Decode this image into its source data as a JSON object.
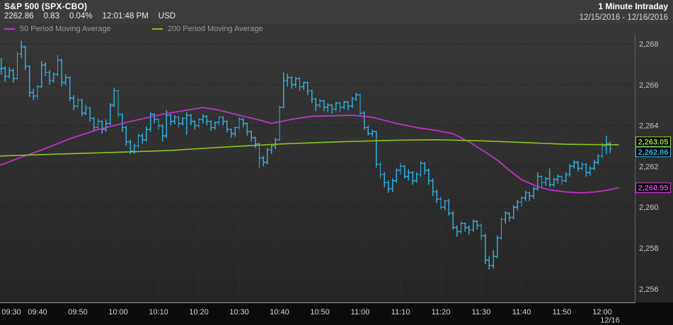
{
  "header": {
    "symbol_title": "S&P 500 (SPX-CBO)",
    "quote": {
      "last": "2262.86",
      "change": "0.83",
      "change_pct": "0.04%",
      "time": "12:01:48 PM",
      "currency": "USD"
    },
    "interval_label": "1 Minute Intraday",
    "date_range": "12/15/2016 - 12/16/2016"
  },
  "legend": {
    "ma50_label": "50 Period Moving Average",
    "ma200_label": "200 Period Moving Average"
  },
  "colors": {
    "header_bg": "#3c3c3c",
    "plot_bg_top": "#373737",
    "plot_bg_bottom": "#262626",
    "axis_strip_bg": "#0b0b0b",
    "price": "#2fadde",
    "ma50": "#c433cc",
    "ma200": "#8dc516",
    "callout_price": "#2fb4e8",
    "callout_ma50": "#e23ee2",
    "callout_ma200": "#9ddc1e",
    "axis_text": "#c6c6c6",
    "time_text": "#d4d4d4",
    "legend_text": "#9b9b9b",
    "grid_h": "#232323",
    "grid_v": "#3e3e3e",
    "axis_line": "#5f5f5f",
    "separator": "#999999"
  },
  "chart_data": {
    "type": "bar",
    "subtype": "ohlc-intraday",
    "title": "S&P 500 (SPX-CBO) 1 Minute Intraday",
    "bar_interval_minutes": 1,
    "session_start": "09:30",
    "session_end": "12:01",
    "y_axis": {
      "min": 2255.6,
      "max": 2268.6,
      "grid": true,
      "ticks": [
        {
          "label": "2,268",
          "value": 2268
        },
        {
          "label": "2,266",
          "value": 2266
        },
        {
          "label": "2,264",
          "value": 2264
        },
        {
          "label": "2,262",
          "value": 2262
        },
        {
          "label": "2,260",
          "value": 2260
        },
        {
          "label": "2,258",
          "value": 2258
        },
        {
          "label": "2,256",
          "value": 2256
        }
      ]
    },
    "x_axis": {
      "labels": [
        "09:30",
        "09:40",
        "09:50",
        "10:00",
        "10:10",
        "10:20",
        "10:30",
        "10:40",
        "10:50",
        "11:00",
        "11:10",
        "11:20",
        "11:30",
        "11:40",
        "11:50",
        "12:00"
      ],
      "date_label": "12/16"
    },
    "callouts": [
      {
        "label": "2,263.05",
        "value": 2263.05,
        "series": "ma200",
        "color": "#9ddc1e"
      },
      {
        "label": "2,262.86",
        "value": 2262.86,
        "series": "price",
        "color": "#2fb4e8"
      },
      {
        "label": "2,260.95",
        "value": 2260.95,
        "series": "ma50",
        "color": "#e23ee2"
      }
    ],
    "bars_hlc": [
      [
        2267.3,
        2266.5,
        2266.8
      ],
      [
        2266.9,
        2266.15,
        2266.4
      ],
      [
        2266.85,
        2266.3,
        2266.7
      ],
      [
        2266.8,
        2266.1,
        2266.3
      ],
      [
        2267.6,
        2266.25,
        2267.5
      ],
      [
        2268.15,
        2267.3,
        2267.85
      ],
      [
        2267.9,
        2266.7,
        2266.9
      ],
      [
        2266.95,
        2265.4,
        2265.6
      ],
      [
        2265.8,
        2265.25,
        2265.45
      ],
      [
        2266.0,
        2265.3,
        2265.9
      ],
      [
        2267.15,
        2265.85,
        2266.95
      ],
      [
        2267.1,
        2266.4,
        2266.6
      ],
      [
        2266.7,
        2266.0,
        2266.2
      ],
      [
        2266.6,
        2266.1,
        2266.5
      ],
      [
        2267.45,
        2266.4,
        2267.2
      ],
      [
        2267.25,
        2265.9,
        2266.1
      ],
      [
        2266.5,
        2265.95,
        2266.35
      ],
      [
        2266.4,
        2265.2,
        2265.35
      ],
      [
        2265.5,
        2264.75,
        2264.95
      ],
      [
        2265.35,
        2264.85,
        2265.25
      ],
      [
        2265.3,
        2264.45,
        2264.6
      ],
      [
        2265.0,
        2264.5,
        2264.85
      ],
      [
        2264.9,
        2264.2,
        2264.35
      ],
      [
        2264.4,
        2263.75,
        2263.9
      ],
      [
        2264.35,
        2263.8,
        2264.2
      ],
      [
        2264.25,
        2263.6,
        2263.8
      ],
      [
        2264.3,
        2263.7,
        2264.1
      ],
      [
        2265.1,
        2264.0,
        2265.0
      ],
      [
        2265.85,
        2264.9,
        2265.7
      ],
      [
        2265.75,
        2264.4,
        2264.55
      ],
      [
        2264.6,
        2263.7,
        2263.9
      ],
      [
        2264.0,
        2263.0,
        2263.2
      ],
      [
        2263.3,
        2262.6,
        2262.75
      ],
      [
        2263.1,
        2262.6,
        2263.0
      ],
      [
        2263.6,
        2262.9,
        2263.5
      ],
      [
        2263.6,
        2263.1,
        2263.3
      ],
      [
        2263.95,
        2263.2,
        2263.8
      ],
      [
        2264.65,
        2263.7,
        2264.55
      ],
      [
        2264.6,
        2264.1,
        2264.3
      ],
      [
        2264.35,
        2263.8,
        2264.0
      ],
      [
        2264.05,
        2263.2,
        2263.5
      ],
      [
        2264.75,
        2263.4,
        2264.5
      ],
      [
        2264.55,
        2264.0,
        2264.2
      ],
      [
        2264.5,
        2264.05,
        2264.4
      ],
      [
        2264.45,
        2263.9,
        2264.1
      ],
      [
        2264.4,
        2264.0,
        2264.35
      ],
      [
        2264.65,
        2263.55,
        2264.5
      ],
      [
        2264.55,
        2264.0,
        2264.2
      ],
      [
        2264.25,
        2263.8,
        2264.0
      ],
      [
        2264.35,
        2263.9,
        2264.3
      ],
      [
        2264.55,
        2264.1,
        2264.45
      ],
      [
        2264.5,
        2264.0,
        2264.2
      ],
      [
        2264.25,
        2263.75,
        2263.9
      ],
      [
        2264.2,
        2263.8,
        2264.15
      ],
      [
        2264.45,
        2264.0,
        2264.4
      ],
      [
        2264.45,
        2264.0,
        2264.2
      ],
      [
        2264.25,
        2263.65,
        2263.8
      ],
      [
        2263.85,
        2263.4,
        2263.6
      ],
      [
        2263.95,
        2263.45,
        2263.9
      ],
      [
        2264.4,
        2263.8,
        2264.3
      ],
      [
        2264.35,
        2263.9,
        2264.1
      ],
      [
        2264.15,
        2263.5,
        2263.7
      ],
      [
        2263.75,
        2263.2,
        2263.4
      ],
      [
        2263.45,
        2262.9,
        2263.1
      ],
      [
        2263.15,
        2261.9,
        2262.4
      ],
      [
        2262.5,
        2262.0,
        2262.2
      ],
      [
        2262.9,
        2262.1,
        2262.8
      ],
      [
        2263.05,
        2262.6,
        2263.0
      ],
      [
        2263.4,
        2262.85,
        2263.3
      ],
      [
        2264.95,
        2263.25,
        2264.9
      ],
      [
        2266.6,
        2264.85,
        2266.2
      ],
      [
        2266.55,
        2265.9,
        2266.35
      ],
      [
        2266.4,
        2265.8,
        2266.0
      ],
      [
        2266.35,
        2265.85,
        2266.3
      ],
      [
        2266.35,
        2265.7,
        2265.9
      ],
      [
        2266.15,
        2265.75,
        2266.1
      ],
      [
        2266.15,
        2265.5,
        2265.7
      ],
      [
        2265.75,
        2265.1,
        2265.3
      ],
      [
        2265.35,
        2264.7,
        2265.0
      ],
      [
        2265.3,
        2264.85,
        2265.2
      ],
      [
        2265.25,
        2264.7,
        2264.9
      ],
      [
        2265.1,
        2264.65,
        2265.0
      ],
      [
        2265.05,
        2264.6,
        2264.8
      ],
      [
        2265.15,
        2264.7,
        2265.1
      ],
      [
        2265.15,
        2264.65,
        2264.9
      ],
      [
        2265.2,
        2264.8,
        2265.15
      ],
      [
        2265.2,
        2264.75,
        2264.95
      ],
      [
        2265.4,
        2264.85,
        2265.3
      ],
      [
        2265.6,
        2265.2,
        2265.5
      ],
      [
        2265.55,
        2264.5,
        2264.6
      ],
      [
        2264.7,
        2263.8,
        2263.9
      ],
      [
        2264.0,
        2263.5,
        2263.6
      ],
      [
        2263.8,
        2263.45,
        2263.7
      ],
      [
        2263.75,
        2261.95,
        2262.1
      ],
      [
        2262.2,
        2261.4,
        2261.6
      ],
      [
        2261.7,
        2261.0,
        2261.2
      ],
      [
        2261.3,
        2260.7,
        2260.9
      ],
      [
        2261.4,
        2260.75,
        2261.3
      ],
      [
        2261.9,
        2261.2,
        2261.8
      ],
      [
        2262.15,
        2261.6,
        2262.0
      ],
      [
        2262.05,
        2261.4,
        2261.5
      ],
      [
        2261.85,
        2261.3,
        2261.7
      ],
      [
        2261.75,
        2261.1,
        2261.3
      ],
      [
        2261.7,
        2261.2,
        2261.6
      ],
      [
        2262.25,
        2261.5,
        2262.15
      ],
      [
        2262.2,
        2261.6,
        2261.8
      ],
      [
        2261.9,
        2261.1,
        2261.3
      ],
      [
        2261.4,
        2260.55,
        2260.75
      ],
      [
        2260.85,
        2260.2,
        2260.4
      ],
      [
        2260.5,
        2259.9,
        2260.0
      ],
      [
        2260.35,
        2259.85,
        2260.3
      ],
      [
        2260.4,
        2259.6,
        2259.7
      ],
      [
        2259.8,
        2258.9,
        2259.0
      ],
      [
        2259.1,
        2258.55,
        2258.8
      ],
      [
        2259.3,
        2258.7,
        2259.2
      ],
      [
        2259.25,
        2258.8,
        2259.0
      ],
      [
        2259.1,
        2258.65,
        2258.9
      ],
      [
        2259.4,
        2258.8,
        2259.3
      ],
      [
        2259.35,
        2258.9,
        2259.1
      ],
      [
        2259.2,
        2258.4,
        2258.6
      ],
      [
        2258.7,
        2257.2,
        2257.4
      ],
      [
        2257.6,
        2256.95,
        2257.15
      ],
      [
        2257.9,
        2257.0,
        2257.6
      ],
      [
        2258.6,
        2257.5,
        2258.5
      ],
      [
        2259.5,
        2258.4,
        2259.4
      ],
      [
        2259.8,
        2259.2,
        2259.7
      ],
      [
        2259.75,
        2259.3,
        2259.5
      ],
      [
        2260.1,
        2259.4,
        2260.0
      ],
      [
        2260.35,
        2259.85,
        2260.25
      ],
      [
        2260.55,
        2260.0,
        2260.45
      ],
      [
        2260.8,
        2260.3,
        2260.7
      ],
      [
        2260.75,
        2260.3,
        2260.55
      ],
      [
        2261.0,
        2260.4,
        2260.9
      ],
      [
        2261.7,
        2260.8,
        2261.5
      ],
      [
        2261.55,
        2261.0,
        2261.2
      ],
      [
        2261.5,
        2261.05,
        2261.4
      ],
      [
        2261.9,
        2261.0,
        2261.1
      ],
      [
        2261.45,
        2261.0,
        2261.35
      ],
      [
        2261.6,
        2261.15,
        2261.5
      ],
      [
        2261.55,
        2261.1,
        2261.3
      ],
      [
        2261.7,
        2261.2,
        2261.6
      ],
      [
        2262.1,
        2261.5,
        2262.0
      ],
      [
        2262.3,
        2261.9,
        2262.2
      ],
      [
        2262.25,
        2261.75,
        2261.9
      ],
      [
        2262.2,
        2261.8,
        2262.1
      ],
      [
        2262.15,
        2261.5,
        2261.7
      ],
      [
        2262.0,
        2261.55,
        2261.9
      ],
      [
        2262.3,
        2261.8,
        2262.2
      ],
      [
        2262.6,
        2262.1,
        2262.5
      ],
      [
        2263.15,
        2262.4,
        2263.0
      ],
      [
        2263.5,
        2262.6,
        2263.1
      ],
      [
        2263.2,
        2262.65,
        2262.86
      ]
    ],
    "ma50": [
      [
        0,
        2262.0
      ],
      [
        6,
        2262.45
      ],
      [
        11,
        2262.8
      ],
      [
        18,
        2263.35
      ],
      [
        25,
        2263.8
      ],
      [
        32,
        2264.15
      ],
      [
        41,
        2264.55
      ],
      [
        46,
        2264.72
      ],
      [
        51,
        2264.88
      ],
      [
        55,
        2264.75
      ],
      [
        60,
        2264.5
      ],
      [
        65,
        2264.27
      ],
      [
        68,
        2264.1
      ],
      [
        73,
        2264.3
      ],
      [
        78,
        2264.45
      ],
      [
        88,
        2264.5
      ],
      [
        93,
        2264.4
      ],
      [
        99,
        2264.1
      ],
      [
        104,
        2263.9
      ],
      [
        109,
        2263.75
      ],
      [
        113,
        2263.6
      ],
      [
        117,
        2263.2
      ],
      [
        121,
        2262.7
      ],
      [
        124,
        2262.3
      ],
      [
        127,
        2261.8
      ],
      [
        130,
        2261.35
      ],
      [
        134,
        2261.0
      ],
      [
        137,
        2260.85
      ],
      [
        141,
        2260.74
      ],
      [
        145,
        2260.7
      ],
      [
        148,
        2260.74
      ],
      [
        151,
        2260.82
      ],
      [
        154,
        2260.95
      ]
    ],
    "ma200": [
      [
        0,
        2262.5
      ],
      [
        15,
        2262.6
      ],
      [
        29,
        2262.68
      ],
      [
        43,
        2262.78
      ],
      [
        57,
        2262.95
      ],
      [
        71,
        2263.1
      ],
      [
        85,
        2263.2
      ],
      [
        99,
        2263.28
      ],
      [
        109,
        2263.3
      ],
      [
        120,
        2263.25
      ],
      [
        130,
        2263.17
      ],
      [
        141,
        2263.08
      ],
      [
        154,
        2263.05
      ]
    ]
  }
}
